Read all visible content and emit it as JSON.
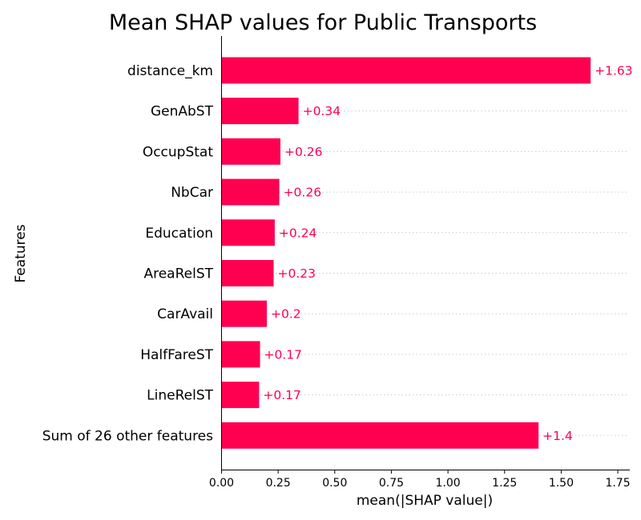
{
  "chart_data": {
    "type": "bar",
    "orientation": "horizontal",
    "title": "Mean SHAP values for Public Transports",
    "xlabel": "mean(|SHAP value|)",
    "ylabel": "Features",
    "categories": [
      "distance_km",
      "GenAbST",
      "OccupStat",
      "NbCar",
      "Education",
      "AreaRelST",
      "CarAvail",
      "HalfFareST",
      "LineRelST",
      "Sum of 26 other features"
    ],
    "values": [
      1.63,
      0.34,
      0.26,
      0.255,
      0.235,
      0.23,
      0.2,
      0.17,
      0.166,
      1.4
    ],
    "value_labels": [
      "+1.63",
      "+0.34",
      "+0.26",
      "+0.26",
      "+0.24",
      "+0.23",
      "+0.2",
      "+0.17",
      "+0.17",
      "+1.4"
    ],
    "xlim": [
      0,
      1.8
    ],
    "xticks": [
      0.0,
      0.25,
      0.5,
      0.75,
      1.0,
      1.25,
      1.5,
      1.75
    ],
    "xtick_labels": [
      "0.00",
      "0.25",
      "0.50",
      "0.75",
      "1.00",
      "1.25",
      "1.50",
      "1.75"
    ],
    "bar_color": "#ff0051",
    "grid": "horizontal dotted lines behind bars"
  }
}
